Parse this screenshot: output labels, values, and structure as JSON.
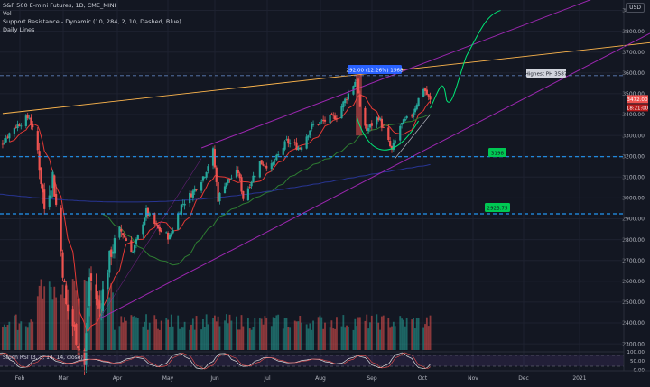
{
  "legend": {
    "title": "S&P 500 E-mini Futures, 1D, CME_MINI",
    "vol": "Vol",
    "indicator": "Support Resistance - Dynamic (10, 284, 2, 10, Dashed, Blue)",
    "lines": "Daily Lines"
  },
  "rsi_label": "Stoch RSI (3, 3, 14, 14, close)",
  "currency": "USD",
  "price_axis": {
    "ticks": [
      "3900.00",
      "3800.00",
      "3700.00",
      "3600.00",
      "3500.00",
      "3400.00",
      "3300.00",
      "3200.00",
      "3100.00",
      "3000.00",
      "2900.00",
      "2800.00",
      "2700.00",
      "2600.00",
      "2500.00",
      "2400.00",
      "2300.00"
    ],
    "last_price": "3472.00",
    "countdown": "18:21:00"
  },
  "rsi_axis": {
    "ticks": [
      "100.00",
      "50.00",
      "0.00"
    ]
  },
  "time_axis": {
    "labels": [
      "Feb",
      "Mar",
      "Apr",
      "May",
      "Jun",
      "Jul",
      "Aug",
      "Sep",
      "Oct",
      "Nov",
      "Dec",
      "2021"
    ]
  },
  "annotations": {
    "range_box": "292.00 (12.26%) 1568",
    "highest": "Highest PH 3587",
    "level_upper": "3198",
    "level_lower": "2923.75"
  },
  "colors": {
    "background": "#131722",
    "up": "#26a69a",
    "down": "#ef5350",
    "channel": "#9c27b0",
    "trend": "#ffb74d",
    "level": "#2196f3",
    "projection": "#00e676",
    "ma_fast": "#e53935",
    "ma_mid": "#2e7d32",
    "ma_slow": "#283593"
  },
  "chart_data": {
    "type": "candlestick",
    "symbol": "S&P 500 E-mini Futures",
    "timeframe": "1D",
    "close_path": [
      [
        "Jan 27",
        3245
      ],
      [
        "Feb 3",
        3270
      ],
      [
        "Feb 10",
        3340
      ],
      [
        "Feb 19",
        3390
      ],
      [
        "Feb 24",
        3225
      ],
      [
        "Feb 28",
        2950
      ],
      [
        "Mar 4",
        3110
      ],
      [
        "Mar 9",
        2745
      ],
      [
        "Mar 12",
        2480
      ],
      [
        "Mar 16",
        2390
      ],
      [
        "Mar 23",
        2195
      ],
      [
        "Mar 26",
        2620
      ],
      [
        "Apr 1",
        2470
      ],
      [
        "Apr 8",
        2745
      ],
      [
        "Apr 14",
        2840
      ],
      [
        "Apr 21",
        2740
      ],
      [
        "Apr 29",
        2935
      ],
      [
        "May 6",
        2850
      ],
      [
        "May 13",
        2810
      ],
      [
        "May 20",
        2965
      ],
      [
        "May 27",
        3030
      ],
      [
        "Jun 3",
        3115
      ],
      [
        "Jun 8",
        3225
      ],
      [
        "Jun 11",
        2995
      ],
      [
        "Jun 15",
        3070
      ],
      [
        "Jun 23",
        3125
      ],
      [
        "Jun 26",
        3000
      ],
      [
        "Jul 6",
        3170
      ],
      [
        "Jul 13",
        3150
      ],
      [
        "Jul 22",
        3270
      ],
      [
        "Jul 30",
        3240
      ],
      [
        "Aug 6",
        3345
      ],
      [
        "Aug 14",
        3370
      ],
      [
        "Aug 21",
        3395
      ],
      [
        "Aug 28",
        3500
      ],
      [
        "Sep 2",
        3575
      ],
      [
        "Sep 4",
        3420
      ],
      [
        "Sep 8",
        3325
      ],
      [
        "Sep 15",
        3390
      ],
      [
        "Sep 23",
        3225
      ],
      [
        "Sep 28",
        3345
      ],
      [
        "Oct 5",
        3400
      ],
      [
        "Oct 9",
        3475
      ],
      [
        "Oct 12",
        3530
      ],
      [
        "Oct 15",
        3480
      ],
      [
        "Oct 16",
        3472
      ]
    ],
    "last_price": 3472,
    "stoch_rsi_range": [
      0,
      100
    ]
  }
}
